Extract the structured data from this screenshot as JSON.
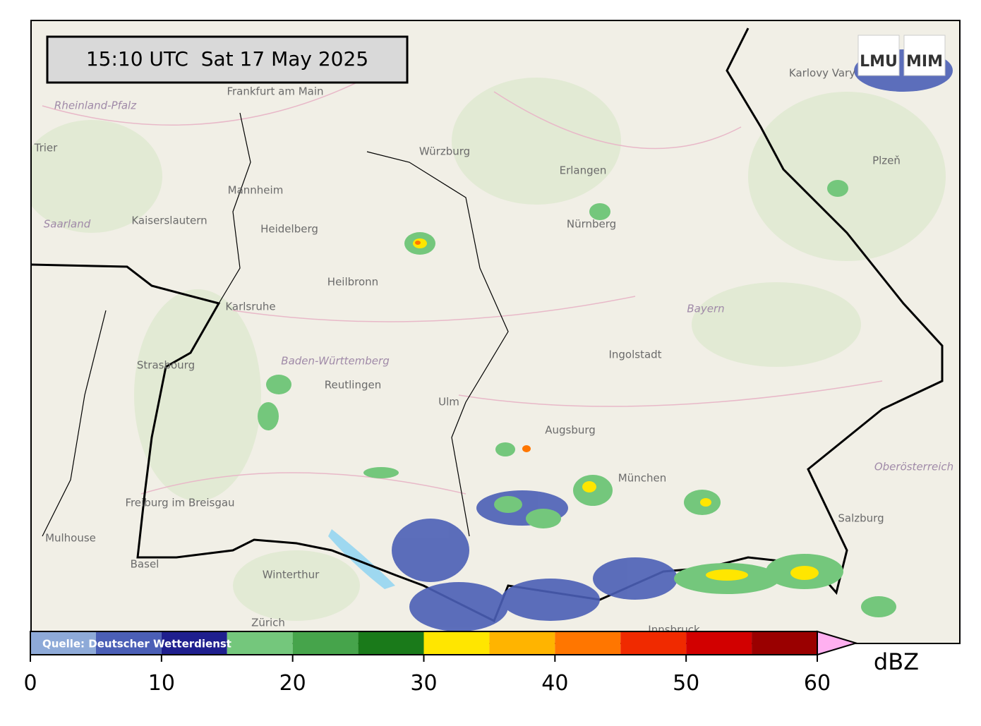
{
  "header": {
    "timestamp": "15:10 UTC  Sat 17 May 2025",
    "logo_left": "LMU",
    "logo_right": "MIM"
  },
  "map": {
    "labels": [
      "Frankfurt am Main",
      "Rheinland-Pfalz",
      "Trier",
      "Mannheim",
      "Kaiserslautern",
      "Saarland",
      "Heidelberg",
      "Karlsruhe",
      "Heilbronn",
      "Würzburg",
      "Erlangen",
      "Nürnberg",
      "Strasbourg",
      "Baden-Württemberg",
      "Reutlingen",
      "Ulm",
      "Ingolstadt",
      "Bayern",
      "Augsburg",
      "München",
      "Freiburg im Breisgau",
      "Mulhouse",
      "Basel",
      "Winterthur",
      "Zürich",
      "Karlovy Vary",
      "Plzeň",
      "Oberösterreich",
      "Salzburg",
      "Innsbruck"
    ],
    "source": "Quelle: Deutscher Wetterdienst"
  },
  "colorbar": {
    "unit": "dBZ",
    "lim": [
      0,
      60
    ],
    "bounds": [
      0,
      5,
      10,
      15,
      20,
      25,
      30,
      35,
      40,
      45,
      50,
      55,
      60
    ],
    "colors": [
      "#8eaad8",
      "#4b5fb6",
      "#1f1f8e",
      "#74c77c",
      "#46a44b",
      "#1a7a1a",
      "#ffe600",
      "#ffb400",
      "#ff7600",
      "#f02a00",
      "#d20000",
      "#9a0000"
    ],
    "extend_color": "#ffb0f0",
    "ticks": [
      0,
      10,
      20,
      30,
      40,
      50,
      60
    ]
  }
}
